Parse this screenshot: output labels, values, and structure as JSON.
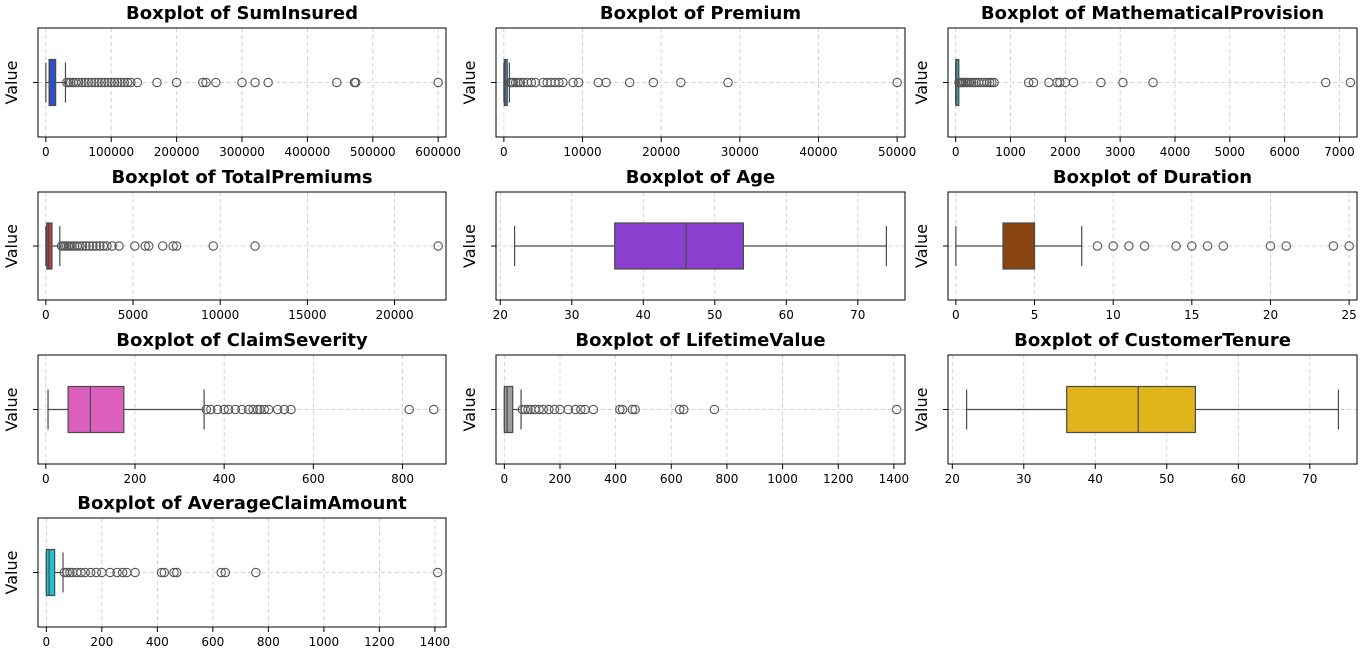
{
  "chart_data": [
    {
      "type": "boxplot",
      "title": "Boxplot of SumInsured",
      "ylabel": "Value",
      "xlim": [
        -12000,
        612000
      ],
      "ticks": [
        0,
        100000,
        200000,
        300000,
        400000,
        500000,
        600000
      ],
      "tick_labels": [
        "0",
        "100000",
        "200000",
        "300000",
        "400000",
        "500000",
        "600000"
      ],
      "color": "#2d4fc9",
      "box": {
        "q1": 5000,
        "median": 5000,
        "q3": 15000,
        "whisker_low": 0,
        "whisker_high": 30000
      },
      "outliers": [
        32000,
        35000,
        38000,
        42000,
        46000,
        50000,
        55000,
        60000,
        65000,
        70000,
        75000,
        80000,
        85000,
        90000,
        95000,
        100000,
        105000,
        110000,
        115000,
        120000,
        125000,
        130000,
        140000,
        170000,
        200000,
        240000,
        245000,
        260000,
        300000,
        320000,
        340000,
        445000,
        472000,
        474000,
        600000
      ]
    },
    {
      "type": "boxplot",
      "title": "Boxplot of Premium",
      "ylabel": "Value",
      "xlim": [
        -1000,
        51000
      ],
      "ticks": [
        0,
        10000,
        20000,
        30000,
        40000,
        50000
      ],
      "tick_labels": [
        "0",
        "10000",
        "20000",
        "30000",
        "40000",
        "50000"
      ],
      "color": "#3a8ad6",
      "box": {
        "q1": 50,
        "median": 150,
        "q3": 300,
        "whisker_low": 0,
        "whisker_high": 700
      },
      "outliers": [
        800,
        1000,
        1200,
        1500,
        1800,
        2100,
        2500,
        3000,
        3500,
        4000,
        5000,
        5500,
        6000,
        6500,
        7000,
        7500,
        8800,
        9500,
        12000,
        13000,
        16000,
        19000,
        22500,
        28500,
        50000
      ]
    },
    {
      "type": "boxplot",
      "title": "Boxplot of MathematicalProvision",
      "ylabel": "Value",
      "xlim": [
        -140,
        7320
      ],
      "ticks": [
        0,
        1000,
        2000,
        3000,
        4000,
        5000,
        6000,
        7000
      ],
      "tick_labels": [
        "0",
        "1000",
        "2000",
        "3000",
        "4000",
        "5000",
        "6000",
        "7000"
      ],
      "color": "#3aa3a3",
      "box": {
        "q1": 2,
        "median": 8,
        "q3": 20,
        "whisker_low": 0,
        "whisker_high": 50
      },
      "outliers": [
        60,
        80,
        100,
        120,
        150,
        180,
        210,
        250,
        290,
        330,
        370,
        420,
        470,
        520,
        570,
        620,
        660,
        700,
        1330,
        1420,
        1700,
        1850,
        1900,
        2000,
        2150,
        2650,
        3050,
        3600,
        6750,
        7200
      ]
    },
    {
      "type": "boxplot",
      "title": "Boxplot of TotalPremiums",
      "ylabel": "Value",
      "xlim": [
        -450,
        22950
      ],
      "ticks": [
        0,
        5000,
        10000,
        15000,
        20000
      ],
      "tick_labels": [
        "0",
        "5000",
        "10000",
        "15000",
        "20000"
      ],
      "color": "#c23b3b",
      "box": {
        "q1": 50,
        "median": 150,
        "q3": 350,
        "whisker_low": 0,
        "whisker_high": 800
      },
      "outliers": [
        900,
        1000,
        1100,
        1200,
        1300,
        1400,
        1500,
        1650,
        1800,
        1950,
        2100,
        2300,
        2500,
        2700,
        2900,
        3100,
        3300,
        3500,
        3800,
        4200,
        5100,
        5700,
        5900,
        6700,
        7300,
        7500,
        9600,
        12000,
        22500
      ]
    },
    {
      "type": "boxplot",
      "title": "Boxplot of Age",
      "ylabel": "Value",
      "xlim": [
        19.4,
        76.6
      ],
      "ticks": [
        20,
        30,
        40,
        50,
        60,
        70
      ],
      "tick_labels": [
        "20",
        "30",
        "40",
        "50",
        "60",
        "70"
      ],
      "color": "#8a3fcf",
      "box": {
        "q1": 36,
        "median": 46,
        "q3": 54,
        "whisker_low": 22,
        "whisker_high": 74
      },
      "outliers": []
    },
    {
      "type": "boxplot",
      "title": "Boxplot of Duration",
      "ylabel": "Value",
      "xlim": [
        -0.5,
        25.5
      ],
      "ticks": [
        0,
        5,
        10,
        15,
        20,
        25
      ],
      "tick_labels": [
        "0",
        "5",
        "10",
        "15",
        "20",
        "25"
      ],
      "color": "#8b4513",
      "box": {
        "q1": 3,
        "median": 3,
        "q3": 5,
        "whisker_low": 0,
        "whisker_high": 8
      },
      "outliers": [
        9,
        10,
        11,
        12,
        14,
        15,
        16,
        17,
        20,
        21,
        24,
        25
      ]
    },
    {
      "type": "boxplot",
      "title": "Boxplot of ClaimSeverity",
      "ylabel": "Value",
      "xlim": [
        -17.5,
        897.5
      ],
      "ticks": [
        0,
        200,
        400,
        600,
        800
      ],
      "tick_labels": [
        "0",
        "200",
        "400",
        "600",
        "800"
      ],
      "color": "#db5fbe",
      "box": {
        "q1": 50,
        "median": 100,
        "q3": 175,
        "whisker_low": 5,
        "whisker_high": 355
      },
      "outliers": [
        360,
        370,
        385,
        400,
        410,
        425,
        440,
        455,
        465,
        475,
        480,
        490,
        500,
        520,
        535,
        550,
        815,
        870
      ]
    },
    {
      "type": "boxplot",
      "title": "Boxplot of LifetimeValue",
      "ylabel": "Value",
      "xlim": [
        -30,
        1440
      ],
      "ticks": [
        0,
        200,
        400,
        600,
        800,
        1000,
        1200,
        1400
      ],
      "tick_labels": [
        "0",
        "200",
        "400",
        "600",
        "800",
        "1000",
        "1200",
        "1400"
      ],
      "color": "#9e9e9e",
      "box": {
        "q1": 0,
        "median": 10,
        "q3": 30,
        "whisker_low": 0,
        "whisker_high": 60
      },
      "outliers": [
        65,
        75,
        85,
        95,
        110,
        125,
        140,
        160,
        180,
        200,
        230,
        255,
        275,
        290,
        320,
        415,
        425,
        460,
        470,
        630,
        645,
        755,
        1410
      ]
    },
    {
      "type": "boxplot",
      "title": "Boxplot of CustomerTenure",
      "ylabel": "Value",
      "xlim": [
        19.4,
        76.6
      ],
      "ticks": [
        20,
        30,
        40,
        50,
        60,
        70
      ],
      "tick_labels": [
        "20",
        "30",
        "40",
        "50",
        "60",
        "70"
      ],
      "color": "#e0b41b",
      "box": {
        "q1": 36,
        "median": 46,
        "q3": 54,
        "whisker_low": 22,
        "whisker_high": 74
      },
      "outliers": []
    },
    {
      "type": "boxplot",
      "title": "Boxplot of AverageClaimAmount",
      "ylabel": "Value",
      "xlim": [
        -30,
        1440
      ],
      "ticks": [
        0,
        200,
        400,
        600,
        800,
        1000,
        1200,
        1400
      ],
      "tick_labels": [
        "0",
        "200",
        "400",
        "600",
        "800",
        "1000",
        "1200",
        "1400"
      ],
      "color": "#1ec0d6",
      "box": {
        "q1": 0,
        "median": 10,
        "q3": 30,
        "whisker_low": 0,
        "whisker_high": 60
      },
      "outliers": [
        65,
        75,
        85,
        95,
        110,
        125,
        140,
        160,
        180,
        200,
        230,
        255,
        275,
        290,
        320,
        415,
        425,
        460,
        470,
        630,
        645,
        755,
        1410
      ]
    }
  ]
}
